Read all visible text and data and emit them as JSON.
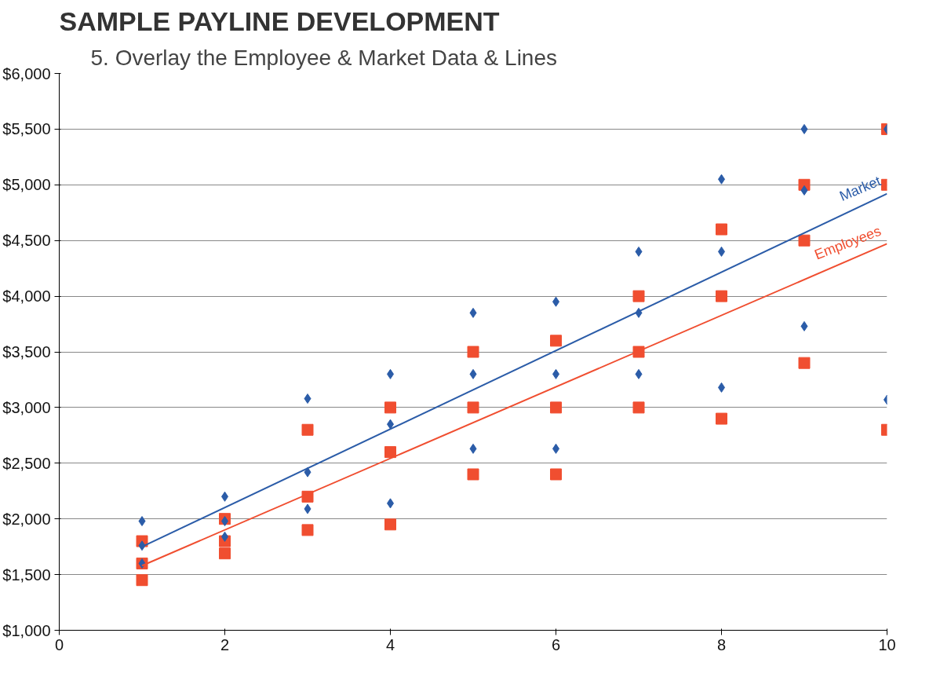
{
  "chart_data": {
    "type": "scatter",
    "title": "SAMPLE PAYLINE DEVELOPMENT",
    "subtitle": "5.  Overlay the Employee & Market Data & Lines",
    "xlim": [
      0,
      10
    ],
    "xticks": [
      0,
      2,
      4,
      6,
      8,
      10
    ],
    "ylim": [
      1000,
      6000
    ],
    "yticks": [
      {
        "value": 1000,
        "label": "$1,000"
      },
      {
        "value": 1500,
        "label": "$1,500"
      },
      {
        "value": 2000,
        "label": "$2,000"
      },
      {
        "value": 2500,
        "label": "$2,500"
      },
      {
        "value": 3000,
        "label": "$3,000"
      },
      {
        "value": 3500,
        "label": "$3,500"
      },
      {
        "value": 4000,
        "label": "$4,000"
      },
      {
        "value": 4500,
        "label": "$4,500"
      },
      {
        "value": 5000,
        "label": "$5,000"
      },
      {
        "value": 5500,
        "label": "$5,500"
      },
      {
        "value": 6000,
        "label": "$6,000"
      }
    ],
    "grid": "y",
    "legend": false,
    "series": [
      {
        "marker": "square",
        "color": "#f04e30",
        "x": [
          1,
          1,
          1,
          2,
          2,
          2,
          3,
          3,
          3,
          4,
          4,
          4,
          5,
          5,
          5,
          6,
          6,
          6,
          7,
          7,
          7,
          8,
          8,
          8,
          9,
          9,
          9,
          10,
          10,
          10
        ],
        "values": [
          1800,
          1600,
          1450,
          2000,
          1800,
          1690,
          2800,
          2200,
          1900,
          3000,
          2600,
          1950,
          3500,
          3000,
          2400,
          3600,
          3000,
          2400,
          4000,
          3500,
          3000,
          4600,
          4000,
          2900,
          5000,
          4500,
          3400,
          5500,
          5000,
          2800
        ]
      },
      {
        "marker": "diamond",
        "color": "#2b5ca8",
        "x": [
          1,
          1,
          1,
          2,
          2,
          2,
          3,
          3,
          3,
          4,
          4,
          4,
          5,
          5,
          5,
          6,
          6,
          6,
          7,
          7,
          7,
          8,
          8,
          8,
          9,
          9,
          9,
          10,
          10
        ],
        "values": [
          1980,
          1760,
          1600,
          2200,
          1980,
          1840,
          3080,
          2420,
          2090,
          3300,
          2850,
          2140,
          3850,
          3300,
          2630,
          3950,
          3300,
          2630,
          4400,
          3850,
          3300,
          5050,
          4400,
          3180,
          5500,
          4950,
          3730,
          5500,
          3070
        ]
      },
      {
        "type": "line",
        "name": "Market",
        "color": "#2b5ca8",
        "x": [
          1,
          10
        ],
        "values": [
          1750,
          4920
        ]
      },
      {
        "type": "line",
        "name": "Employees",
        "color": "#f04e30",
        "x": [
          1,
          10
        ],
        "values": [
          1580,
          4470
        ]
      }
    ]
  }
}
